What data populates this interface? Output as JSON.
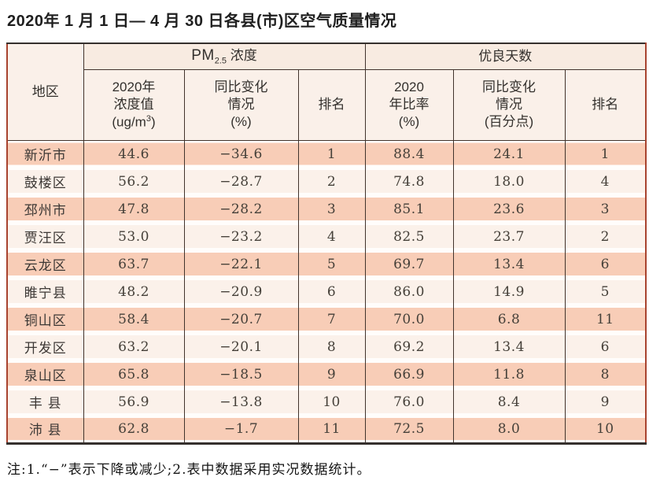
{
  "page": {
    "title": "2020年 1 月 1 日— 4 月 30 日各县(市)区空气质量情况",
    "note": "注:1.“−”表示下降或减少;2.表中数据采用实况数据统计。"
  },
  "colors": {
    "row_dark": "#f8cdb7",
    "row_light": "#fbf1ea",
    "header_bg": "#faf0e9",
    "outer_border_side": "#a8432f",
    "grid_line": "#41332c"
  },
  "table": {
    "corner_header": "地区",
    "group_pm25": {
      "prefix": "PM",
      "sub": "2.5",
      "suffix": " 浓度"
    },
    "group_good_days": "优良天数",
    "col_pm_value": {
      "line1": "2020年",
      "line2": "浓度值",
      "unit_open": "(ug/m",
      "unit_sup": "3",
      "unit_close": ")"
    },
    "col_pm_change": {
      "line1": "同比变化",
      "line2": "情况",
      "line3": "(%)"
    },
    "col_pm_rank": "排名",
    "col_ratio": {
      "line1": "2020",
      "line2": "年比率",
      "line3": "(%)"
    },
    "col_good_change": {
      "line1": "同比变化",
      "line2": "情况",
      "line3": "(百分点)"
    },
    "col_good_rank": "排名",
    "rows": [
      {
        "region": "新沂市",
        "pm_value": "44.6",
        "pm_change": "−34.6",
        "pm_rank": "1",
        "ratio": "88.4",
        "good_change": "24.1",
        "good_rank": "1"
      },
      {
        "region": "鼓楼区",
        "pm_value": "56.2",
        "pm_change": "−28.7",
        "pm_rank": "2",
        "ratio": "74.8",
        "good_change": "18.0",
        "good_rank": "4"
      },
      {
        "region": "邳州市",
        "pm_value": "47.8",
        "pm_change": "−28.2",
        "pm_rank": "3",
        "ratio": "85.1",
        "good_change": "23.6",
        "good_rank": "3"
      },
      {
        "region": "贾汪区",
        "pm_value": "53.0",
        "pm_change": "−23.2",
        "pm_rank": "4",
        "ratio": "82.5",
        "good_change": "23.7",
        "good_rank": "2"
      },
      {
        "region": "云龙区",
        "pm_value": "63.7",
        "pm_change": "−22.1",
        "pm_rank": "5",
        "ratio": "69.7",
        "good_change": "13.4",
        "good_rank": "6"
      },
      {
        "region": "睢宁县",
        "pm_value": "48.2",
        "pm_change": "−20.9",
        "pm_rank": "6",
        "ratio": "86.0",
        "good_change": "14.9",
        "good_rank": "5"
      },
      {
        "region": "铜山区",
        "pm_value": "58.4",
        "pm_change": "−20.7",
        "pm_rank": "7",
        "ratio": "70.0",
        "good_change": "6.8",
        "good_rank": "11"
      },
      {
        "region": "开发区",
        "pm_value": "63.2",
        "pm_change": "−20.1",
        "pm_rank": "8",
        "ratio": "69.2",
        "good_change": "13.4",
        "good_rank": "6"
      },
      {
        "region": "泉山区",
        "pm_value": "65.8",
        "pm_change": "−18.5",
        "pm_rank": "9",
        "ratio": "66.9",
        "good_change": "11.8",
        "good_rank": "8"
      },
      {
        "region": "丰 县",
        "pm_value": "56.9",
        "pm_change": "−13.8",
        "pm_rank": "10",
        "ratio": "76.0",
        "good_change": "8.4",
        "good_rank": "9"
      },
      {
        "region": "沛 县",
        "pm_value": "62.8",
        "pm_change": "−1.7",
        "pm_rank": "11",
        "ratio": "72.5",
        "good_change": "8.0",
        "good_rank": "10"
      }
    ]
  }
}
